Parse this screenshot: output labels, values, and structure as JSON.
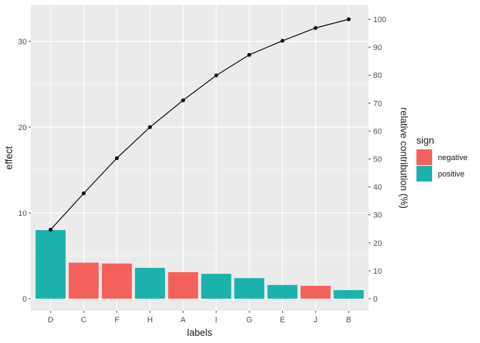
{
  "figure": {
    "background": "#FFFFFF",
    "panel_background": "#EBEBEB",
    "grid_color": "#FFFFFF",
    "tick_mark_color": "#333333",
    "tick_label_color": "#4D4D4D",
    "title_color": "#1A1A1A",
    "line_color": "#000000"
  },
  "chart_data": {
    "type": "bar",
    "subtype": "pareto-with-cumulative-line",
    "title": "",
    "xlabel": "labels",
    "ylabel": "effect",
    "y2label": "relative contribution (%)",
    "categories": [
      "D",
      "C",
      "F",
      "H",
      "A",
      "I",
      "G",
      "E",
      "J",
      "B"
    ],
    "series": [
      {
        "name": "effect",
        "type": "bar",
        "values": [
          8.0,
          4.2,
          4.1,
          3.6,
          3.1,
          2.9,
          2.4,
          1.6,
          1.5,
          1.0
        ],
        "signs": [
          "positive",
          "negative",
          "negative",
          "positive",
          "negative",
          "positive",
          "positive",
          "positive",
          "negative",
          "positive"
        ]
      },
      {
        "name": "cumulative relative contribution (%)",
        "type": "line",
        "values": [
          24.7,
          37.7,
          50.3,
          61.4,
          71.0,
          79.9,
          87.3,
          92.3,
          96.9,
          100.0
        ]
      }
    ],
    "left_axis": {
      "title": "effect",
      "tick_values": [
        0,
        10,
        20,
        30
      ],
      "tick_labels": [
        "0",
        "10",
        "20",
        "30"
      ],
      "minor_values": [
        5,
        15,
        25
      ],
      "range": [
        -1.45,
        34.25
      ]
    },
    "right_axis": {
      "title": "relative contribution (%)",
      "tick_values": [
        0,
        10,
        20,
        30,
        40,
        50,
        60,
        70,
        80,
        90,
        100
      ],
      "tick_labels": [
        "0",
        "10",
        "20",
        "30",
        "40",
        "50",
        "60",
        "70",
        "80",
        "90",
        "100"
      ]
    },
    "grid": "on",
    "legend": {
      "title": "sign",
      "position": "right",
      "items": [
        {
          "label": "negative",
          "color": "#F4605C"
        },
        {
          "label": "positive",
          "color": "#1CB2AC"
        }
      ]
    }
  }
}
